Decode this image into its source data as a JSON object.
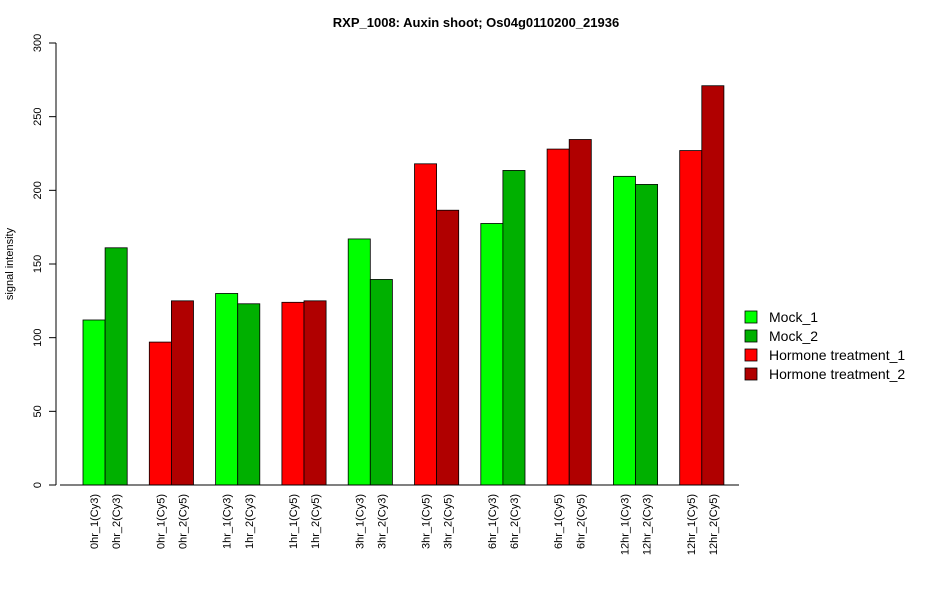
{
  "chart_data": {
    "type": "bar",
    "title": "RXP_1008: Auxin shoot; Os04g0110200_21936",
    "xlabel": "",
    "ylabel": "signal intensity",
    "ylim": [
      0,
      300
    ],
    "yticks": [
      0,
      50,
      100,
      150,
      200,
      250,
      300
    ],
    "grid": false,
    "legend_position": "right",
    "legend": [
      {
        "name": "Mock_1",
        "color": "#00ff00"
      },
      {
        "name": "Mock_2",
        "color": "#00b000"
      },
      {
        "name": "Hormone treatment_1",
        "color": "#ff0000"
      },
      {
        "name": "Hormone treatment_2",
        "color": "#b00000"
      }
    ],
    "bars": [
      {
        "label": "0hr_1(Cy3)",
        "value": 112,
        "series": "Mock_1"
      },
      {
        "label": "0hr_2(Cy3)",
        "value": 161,
        "series": "Mock_2"
      },
      {
        "label": "0hr_1(Cy5)",
        "value": 97,
        "series": "Hormone treatment_1"
      },
      {
        "label": "0hr_2(Cy5)",
        "value": 125,
        "series": "Hormone treatment_2"
      },
      {
        "label": "1hr_1(Cy3)",
        "value": 130,
        "series": "Mock_1"
      },
      {
        "label": "1hr_2(Cy3)",
        "value": 123,
        "series": "Mock_2"
      },
      {
        "label": "1hr_1(Cy5)",
        "value": 124,
        "series": "Hormone treatment_1"
      },
      {
        "label": "1hr_2(Cy5)",
        "value": 125,
        "series": "Hormone treatment_2"
      },
      {
        "label": "3hr_1(Cy3)",
        "value": 167,
        "series": "Mock_1"
      },
      {
        "label": "3hr_2(Cy3)",
        "value": 139.5,
        "series": "Mock_2"
      },
      {
        "label": "3hr_1(Cy5)",
        "value": 218,
        "series": "Hormone treatment_1"
      },
      {
        "label": "3hr_2(Cy5)",
        "value": 186.5,
        "series": "Hormone treatment_2"
      },
      {
        "label": "6hr_1(Cy3)",
        "value": 177.5,
        "series": "Mock_1"
      },
      {
        "label": "6hr_2(Cy3)",
        "value": 213.5,
        "series": "Mock_2"
      },
      {
        "label": "6hr_1(Cy5)",
        "value": 228,
        "series": "Hormone treatment_1"
      },
      {
        "label": "6hr_2(Cy5)",
        "value": 234.5,
        "series": "Hormone treatment_2"
      },
      {
        "label": "12hr_1(Cy3)",
        "value": 209.5,
        "series": "Mock_1"
      },
      {
        "label": "12hr_2(Cy3)",
        "value": 204,
        "series": "Mock_2"
      },
      {
        "label": "12hr_1(Cy5)",
        "value": 227,
        "series": "Hormone treatment_1"
      },
      {
        "label": "12hr_2(Cy5)",
        "value": 271,
        "series": "Hormone treatment_2"
      }
    ]
  }
}
